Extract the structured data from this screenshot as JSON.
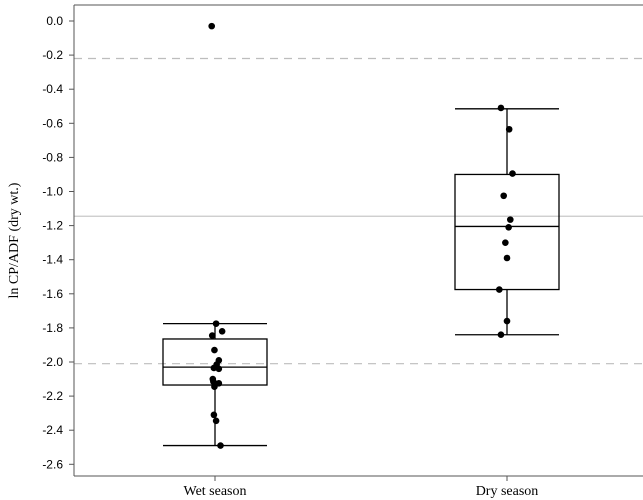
{
  "chart_data": {
    "type": "box",
    "title": "",
    "xlabel": "",
    "ylabel": "ln CP/ADF (dry wt.)",
    "ylim": [
      -2.64,
      0.1
    ],
    "yticks": [
      0.0,
      -0.2,
      -0.4,
      -0.6,
      -0.8,
      -1.0,
      -1.2,
      -1.4,
      -1.6,
      -1.8,
      -2.0,
      -2.2,
      -2.4,
      -2.6
    ],
    "ytick_labels": [
      "0.0",
      "-0.2",
      "-0.4",
      "-0.6",
      "-0.8",
      "-1.0",
      "-1.2",
      "-1.4",
      "-1.6",
      "-1.8",
      "-2.0",
      "-2.2",
      "-2.4",
      "-2.6"
    ],
    "categories": [
      "Wet season",
      "Dry season"
    ],
    "grid": false,
    "reference_lines": [
      {
        "value": -1.145,
        "style": "solid"
      },
      {
        "value": -0.22,
        "style": "dashed"
      },
      {
        "value": -2.01,
        "style": "dashed"
      }
    ],
    "boxes": [
      {
        "category": "Wet season",
        "whisker_low": -2.49,
        "q1": -2.135,
        "median": -2.03,
        "q3": -1.865,
        "whisker_high": -1.775,
        "points": [
          {
            "jitter": -0.06,
            "y": -0.03
          },
          {
            "jitter": 0.02,
            "y": -1.775
          },
          {
            "jitter": -0.05,
            "y": -1.845
          },
          {
            "jitter": 0.13,
            "y": -1.82
          },
          {
            "jitter": -0.01,
            "y": -1.93
          },
          {
            "jitter": 0.07,
            "y": -1.99
          },
          {
            "jitter": 0.03,
            "y": -2.015
          },
          {
            "jitter": -0.02,
            "y": -2.035
          },
          {
            "jitter": 0.07,
            "y": -2.04
          },
          {
            "jitter": -0.04,
            "y": -2.1
          },
          {
            "jitter": -0.03,
            "y": -2.115
          },
          {
            "jitter": 0.07,
            "y": -2.125
          },
          {
            "jitter": -0.01,
            "y": -2.145
          },
          {
            "jitter": -0.02,
            "y": -2.31
          },
          {
            "jitter": 0.02,
            "y": -2.345
          },
          {
            "jitter": 0.1,
            "y": -2.49
          }
        ]
      },
      {
        "category": "Dry season",
        "whisker_low": -1.84,
        "q1": -1.575,
        "median": -1.205,
        "q3": -0.9,
        "whisker_high": -0.515,
        "points": [
          {
            "jitter": -0.11,
            "y": -0.51
          },
          {
            "jitter": 0.04,
            "y": -0.635
          },
          {
            "jitter": 0.1,
            "y": -0.895
          },
          {
            "jitter": -0.06,
            "y": -1.025
          },
          {
            "jitter": 0.06,
            "y": -1.165
          },
          {
            "jitter": 0.03,
            "y": -1.21
          },
          {
            "jitter": -0.03,
            "y": -1.3
          },
          {
            "jitter": 0.0,
            "y": -1.39
          },
          {
            "jitter": -0.14,
            "y": -1.575
          },
          {
            "jitter": 0.0,
            "y": -1.76
          },
          {
            "jitter": -0.11,
            "y": -1.84
          }
        ]
      }
    ]
  }
}
